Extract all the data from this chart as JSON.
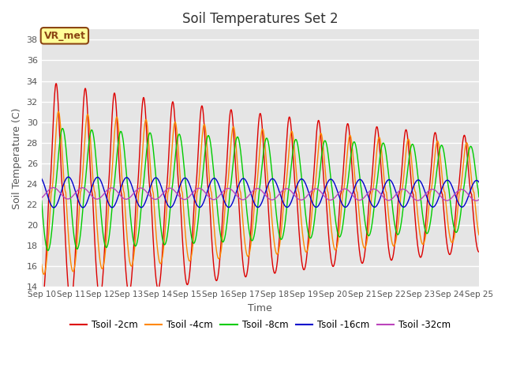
{
  "title": "Soil Temperatures Set 2",
  "xlabel": "Time",
  "ylabel": "Soil Temperature (C)",
  "ylim": [
    14,
    39
  ],
  "yticks": [
    14,
    16,
    18,
    20,
    22,
    24,
    26,
    28,
    30,
    32,
    34,
    36,
    38
  ],
  "background_color": "#e5e5e5",
  "fig_bg_color": "#ffffff",
  "annotation_text": "VR_met",
  "annotation_bg": "#ffff99",
  "annotation_border": "#8b4513",
  "series": [
    {
      "label": "Tsoil -2cm",
      "color": "#dd0000",
      "lw": 1.0
    },
    {
      "label": "Tsoil -4cm",
      "color": "#ff8800",
      "lw": 1.0
    },
    {
      "label": "Tsoil -8cm",
      "color": "#00cc00",
      "lw": 1.0
    },
    {
      "label": "Tsoil -16cm",
      "color": "#0000cc",
      "lw": 1.0
    },
    {
      "label": "Tsoil -32cm",
      "color": "#bb44bb",
      "lw": 1.0
    }
  ]
}
